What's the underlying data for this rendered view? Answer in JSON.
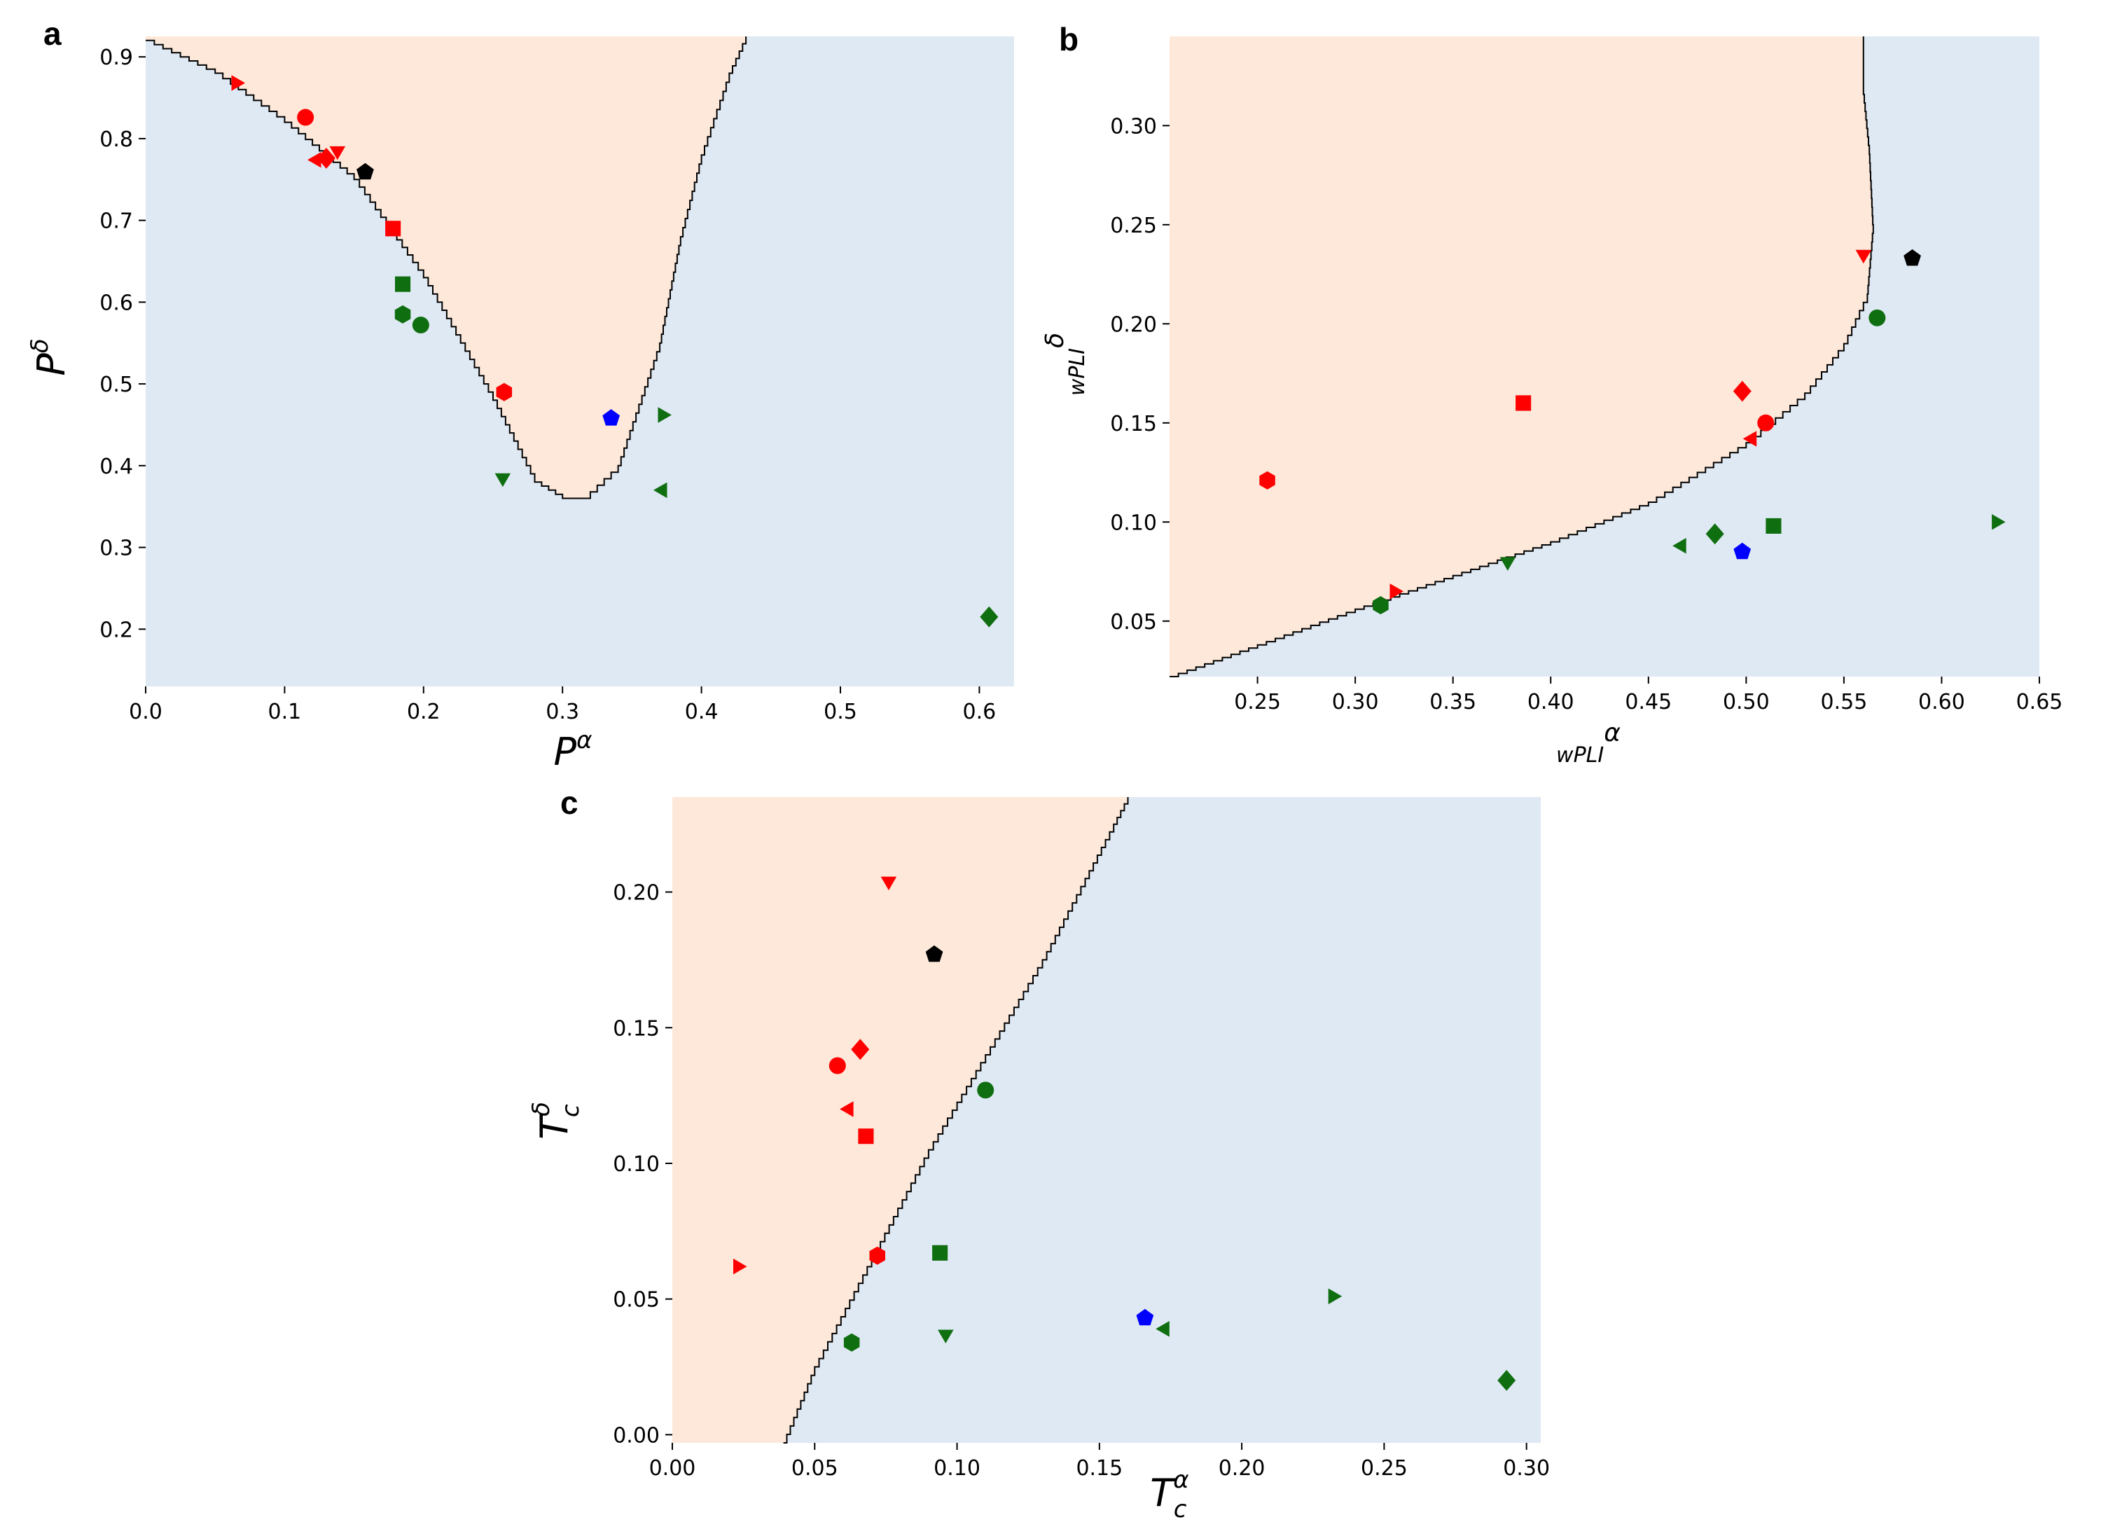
{
  "figure": {
    "colors": {
      "region_a": "#fde8d9",
      "region_b": "#dfe9f4",
      "boundary": "#000000",
      "red": "#ff0000",
      "green": "#0f6e0f",
      "blue": "#0000ff",
      "black": "#000000"
    }
  },
  "chart_data": [
    {
      "panel": "a",
      "type": "scatter",
      "xlabel": {
        "base": "P",
        "sup": "α"
      },
      "ylabel": {
        "base": "P",
        "sup": "δ"
      },
      "xlim": [
        0.0,
        0.625
      ],
      "ylim": [
        0.13,
        0.925
      ],
      "xticks": [
        "0.0",
        "0.1",
        "0.2",
        "0.3",
        "0.4",
        "0.5",
        "0.6"
      ],
      "yticks": [
        "0.2",
        "0.3",
        "0.4",
        "0.5",
        "0.6",
        "0.7",
        "0.8",
        "0.9"
      ],
      "boundary": [
        [
          0.0,
          0.92
        ],
        [
          0.05,
          0.88
        ],
        [
          0.1,
          0.82
        ],
        [
          0.15,
          0.75
        ],
        [
          0.2,
          0.63
        ],
        [
          0.25,
          0.48
        ],
        [
          0.28,
          0.38
        ],
        [
          0.3,
          0.36
        ],
        [
          0.315,
          0.36
        ],
        [
          0.34,
          0.4
        ],
        [
          0.37,
          0.55
        ],
        [
          0.385,
          0.68
        ],
        [
          0.4,
          0.78
        ],
        [
          0.42,
          0.88
        ],
        [
          0.432,
          0.925
        ]
      ],
      "points": [
        {
          "x": 0.065,
          "y": 0.868,
          "marker": "triangle-right",
          "color": "red"
        },
        {
          "x": 0.115,
          "y": 0.826,
          "marker": "circle",
          "color": "red"
        },
        {
          "x": 0.123,
          "y": 0.774,
          "marker": "triangle-left",
          "color": "red"
        },
        {
          "x": 0.13,
          "y": 0.776,
          "marker": "diamond",
          "color": "red"
        },
        {
          "x": 0.138,
          "y": 0.785,
          "marker": "triangle-down",
          "color": "red"
        },
        {
          "x": 0.158,
          "y": 0.759,
          "marker": "pentagon",
          "color": "black"
        },
        {
          "x": 0.178,
          "y": 0.69,
          "marker": "square",
          "color": "red"
        },
        {
          "x": 0.185,
          "y": 0.622,
          "marker": "square",
          "color": "green"
        },
        {
          "x": 0.185,
          "y": 0.585,
          "marker": "hexagon",
          "color": "green"
        },
        {
          "x": 0.198,
          "y": 0.572,
          "marker": "circle",
          "color": "green"
        },
        {
          "x": 0.258,
          "y": 0.49,
          "marker": "hexagon",
          "color": "red"
        },
        {
          "x": 0.335,
          "y": 0.458,
          "marker": "pentagon",
          "color": "blue"
        },
        {
          "x": 0.372,
          "y": 0.462,
          "marker": "triangle-right",
          "color": "green"
        },
        {
          "x": 0.257,
          "y": 0.385,
          "marker": "triangle-down",
          "color": "green"
        },
        {
          "x": 0.372,
          "y": 0.37,
          "marker": "triangle-left",
          "color": "green"
        },
        {
          "x": 0.607,
          "y": 0.215,
          "marker": "diamond",
          "color": "green"
        }
      ]
    },
    {
      "panel": "b",
      "type": "scatter",
      "xlabel": {
        "base": "wPLI",
        "sup": "α"
      },
      "ylabel": {
        "base": "wPLI",
        "sup": "δ"
      },
      "xlim": [
        0.205,
        0.65
      ],
      "ylim": [
        0.022,
        0.345
      ],
      "xticks": [
        "0.25",
        "0.30",
        "0.35",
        "0.40",
        "0.45",
        "0.50",
        "0.55",
        "0.60",
        "0.65"
      ],
      "yticks": [
        "0.05",
        "0.10",
        "0.15",
        "0.20",
        "0.25",
        "0.30"
      ],
      "boundary": [
        [
          0.205,
          0.022
        ],
        [
          0.25,
          0.038
        ],
        [
          0.3,
          0.056
        ],
        [
          0.35,
          0.073
        ],
        [
          0.4,
          0.09
        ],
        [
          0.45,
          0.11
        ],
        [
          0.5,
          0.14
        ],
        [
          0.53,
          0.165
        ],
        [
          0.55,
          0.19
        ],
        [
          0.562,
          0.215
        ],
        [
          0.565,
          0.25
        ],
        [
          0.563,
          0.29
        ],
        [
          0.56,
          0.32
        ],
        [
          0.56,
          0.345
        ]
      ],
      "points": [
        {
          "x": 0.255,
          "y": 0.121,
          "marker": "hexagon",
          "color": "red"
        },
        {
          "x": 0.386,
          "y": 0.16,
          "marker": "square",
          "color": "red"
        },
        {
          "x": 0.498,
          "y": 0.166,
          "marker": "diamond",
          "color": "red"
        },
        {
          "x": 0.51,
          "y": 0.15,
          "marker": "circle",
          "color": "red"
        },
        {
          "x": 0.503,
          "y": 0.142,
          "marker": "triangle-left",
          "color": "red"
        },
        {
          "x": 0.56,
          "y": 0.235,
          "marker": "triangle-down",
          "color": "red"
        },
        {
          "x": 0.585,
          "y": 0.233,
          "marker": "pentagon",
          "color": "black"
        },
        {
          "x": 0.567,
          "y": 0.203,
          "marker": "circle",
          "color": "green"
        },
        {
          "x": 0.32,
          "y": 0.065,
          "marker": "triangle-right",
          "color": "red"
        },
        {
          "x": 0.313,
          "y": 0.058,
          "marker": "hexagon",
          "color": "green"
        },
        {
          "x": 0.378,
          "y": 0.08,
          "marker": "triangle-down",
          "color": "green"
        },
        {
          "x": 0.467,
          "y": 0.088,
          "marker": "triangle-left",
          "color": "green"
        },
        {
          "x": 0.484,
          "y": 0.094,
          "marker": "diamond",
          "color": "green"
        },
        {
          "x": 0.498,
          "y": 0.085,
          "marker": "pentagon",
          "color": "blue"
        },
        {
          "x": 0.514,
          "y": 0.098,
          "marker": "square",
          "color": "green"
        },
        {
          "x": 0.628,
          "y": 0.1,
          "marker": "triangle-right",
          "color": "green"
        }
      ]
    },
    {
      "panel": "c",
      "type": "scatter",
      "xlabel": {
        "base": "T",
        "sub": "c",
        "sup": "α"
      },
      "ylabel": {
        "base": "T",
        "sub": "c",
        "sup": "δ"
      },
      "xlim": [
        0.0,
        0.305
      ],
      "ylim": [
        -0.003,
        0.235
      ],
      "xticks": [
        "0.00",
        "0.05",
        "0.10",
        "0.15",
        "0.20",
        "0.25",
        "0.30"
      ],
      "yticks": [
        "0.00",
        "0.05",
        "0.10",
        "0.15",
        "0.20"
      ],
      "boundary": [
        [
          0.039,
          -0.003
        ],
        [
          0.05,
          0.025
        ],
        [
          0.07,
          0.065
        ],
        [
          0.09,
          0.105
        ],
        [
          0.11,
          0.14
        ],
        [
          0.13,
          0.175
        ],
        [
          0.145,
          0.205
        ],
        [
          0.155,
          0.225
        ],
        [
          0.16,
          0.235
        ]
      ],
      "points": [
        {
          "x": 0.076,
          "y": 0.204,
          "marker": "triangle-down",
          "color": "red"
        },
        {
          "x": 0.092,
          "y": 0.177,
          "marker": "pentagon",
          "color": "black"
        },
        {
          "x": 0.058,
          "y": 0.136,
          "marker": "circle",
          "color": "red"
        },
        {
          "x": 0.066,
          "y": 0.142,
          "marker": "diamond",
          "color": "red"
        },
        {
          "x": 0.062,
          "y": 0.12,
          "marker": "triangle-left",
          "color": "red"
        },
        {
          "x": 0.068,
          "y": 0.11,
          "marker": "square",
          "color": "red"
        },
        {
          "x": 0.11,
          "y": 0.127,
          "marker": "circle",
          "color": "green"
        },
        {
          "x": 0.023,
          "y": 0.062,
          "marker": "triangle-right",
          "color": "red"
        },
        {
          "x": 0.072,
          "y": 0.066,
          "marker": "hexagon",
          "color": "red"
        },
        {
          "x": 0.094,
          "y": 0.067,
          "marker": "square",
          "color": "green"
        },
        {
          "x": 0.063,
          "y": 0.034,
          "marker": "hexagon",
          "color": "green"
        },
        {
          "x": 0.096,
          "y": 0.037,
          "marker": "triangle-down",
          "color": "green"
        },
        {
          "x": 0.166,
          "y": 0.043,
          "marker": "pentagon",
          "color": "blue"
        },
        {
          "x": 0.173,
          "y": 0.039,
          "marker": "triangle-left",
          "color": "green"
        },
        {
          "x": 0.232,
          "y": 0.051,
          "marker": "triangle-right",
          "color": "green"
        },
        {
          "x": 0.293,
          "y": 0.02,
          "marker": "diamond",
          "color": "green"
        }
      ]
    }
  ]
}
